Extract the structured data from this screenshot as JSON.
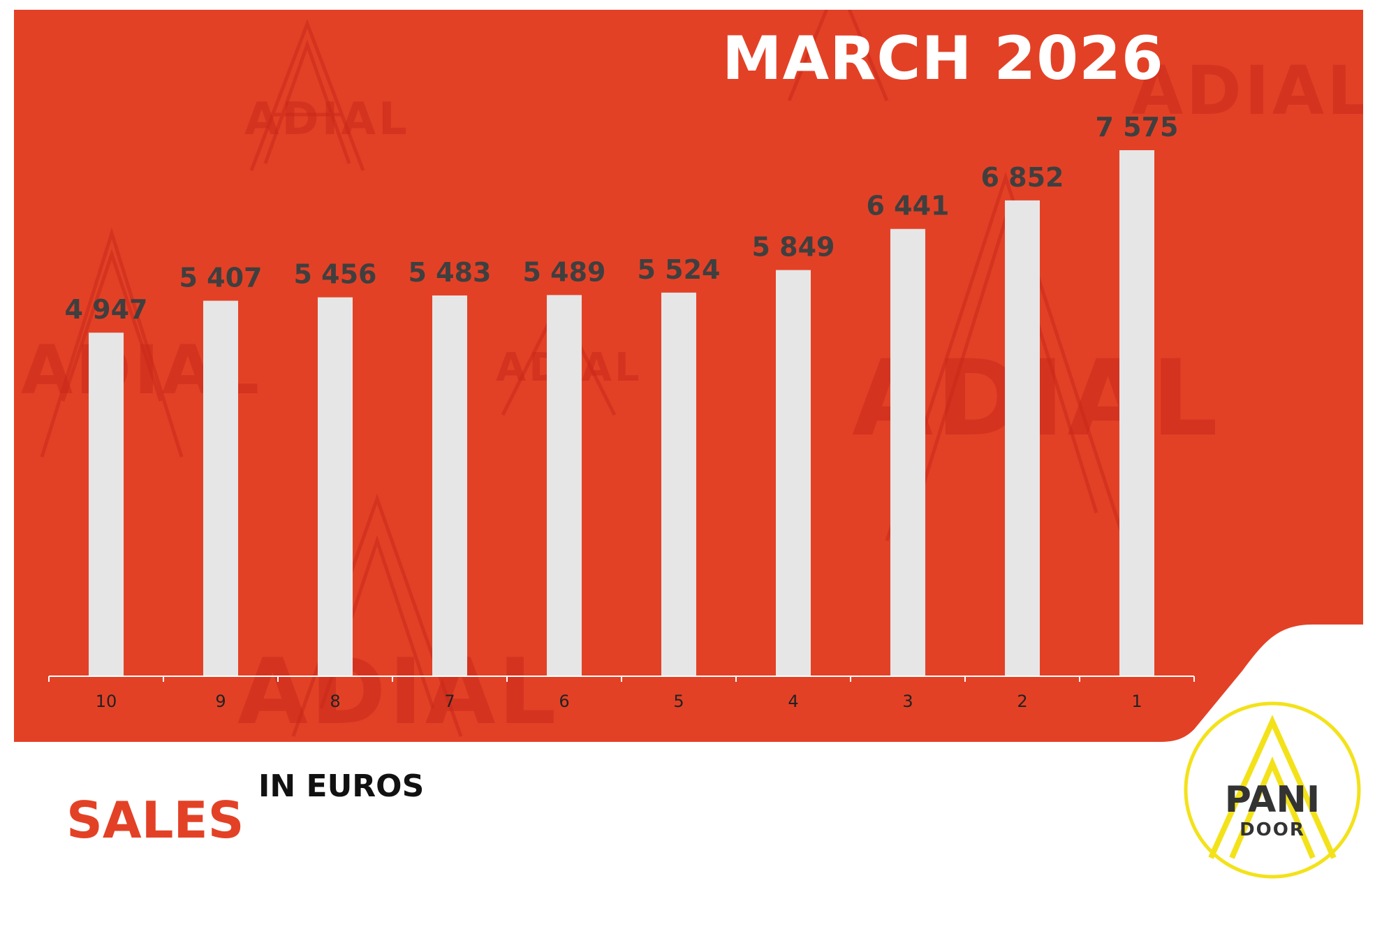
{
  "header": {
    "title": "MARCH 2026"
  },
  "footer": {
    "metric_label": "SALES",
    "unit_label": "IN EUROS"
  },
  "logo": {
    "word1": "PANI",
    "word2": "DOOR",
    "watermark_text": "ADIAL"
  },
  "colors": {
    "background": "#e34126",
    "bars": "#e6e6e6",
    "value_labels": "#3f3f3f",
    "logo_ring": "#f3e21a"
  },
  "chart_data": {
    "type": "bar",
    "categories": [
      "10",
      "9",
      "8",
      "7",
      "6",
      "5",
      "4",
      "3",
      "2",
      "1"
    ],
    "values": [
      4947,
      5407,
      5456,
      5483,
      5489,
      5524,
      5849,
      6441,
      6852,
      7575
    ],
    "value_labels": [
      "4 947",
      "5 407",
      "5 456",
      "5 483",
      "5 489",
      "5 524",
      "5 849",
      "6 441",
      "6 852",
      "7 575"
    ],
    "title": "MARCH 2026",
    "xlabel": "",
    "ylabel": "",
    "ylim": [
      0,
      7575
    ],
    "grid": false,
    "legend": "none"
  }
}
